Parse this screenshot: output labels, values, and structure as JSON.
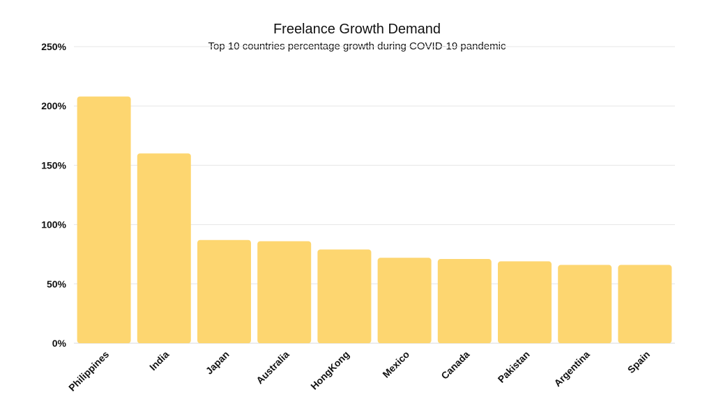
{
  "chart_data": {
    "type": "bar",
    "title": "Freelance Growth Demand",
    "subtitle": "Top 10 countries percentage growth during COVID-19 pandemic",
    "categories": [
      "Philippines",
      "India",
      "Japan",
      "Australia",
      "HongKong",
      "Mexico",
      "Canada",
      "Pakistan",
      "Argentina",
      "Spain"
    ],
    "values": [
      208,
      160,
      87,
      86,
      79,
      72,
      71,
      69,
      66,
      66
    ],
    "ylim": [
      0,
      250
    ],
    "yticks": [
      "0%",
      "50%",
      "100%",
      "150%",
      "200%",
      "250%"
    ],
    "ytick_values": [
      0,
      50,
      100,
      150,
      200,
      250
    ],
    "xlabel": "",
    "ylabel": "",
    "grid": true,
    "legend": "none",
    "bar_color": "#FDD670",
    "grid_color": "#e6e6e6"
  }
}
